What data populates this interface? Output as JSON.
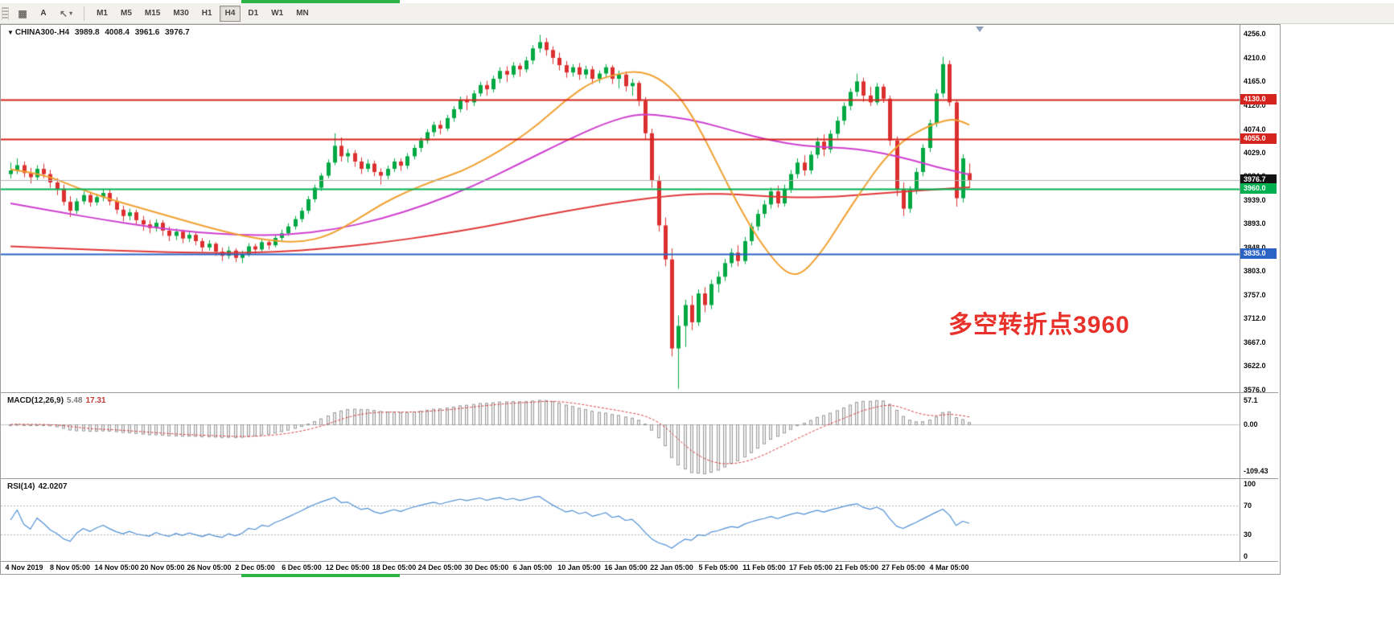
{
  "toolbar": {
    "a_label": "A",
    "icon1_glyph": "▦",
    "icon3_glyph": "↖",
    "chevron_glyph": "▾",
    "timeframes": [
      "M1",
      "M5",
      "M15",
      "M30",
      "H1",
      "H4",
      "D1",
      "W1",
      "MN"
    ],
    "selected_timeframe": "H4"
  },
  "chart_data": {
    "type": "candlestick",
    "symbol": "CHINA300-",
    "timeframe": "H4",
    "header": {
      "symbol_period": "CHINA300-.H4",
      "open": "3989.8",
      "high": "4008.4",
      "low": "3961.6",
      "close": "3976.7"
    },
    "ylim": [
      3576,
      4256
    ],
    "y_ticks": [
      "4256.0",
      "4210.0",
      "4165.0",
      "4120.0",
      "4074.0",
      "4029.0",
      "3984.0",
      "3939.0",
      "3893.0",
      "3848.0",
      "3803.0",
      "3757.0",
      "3712.0",
      "3667.0",
      "3622.0",
      "3576.0"
    ],
    "x_labels": [
      "4 Nov 2019",
      "8 Nov 05:00",
      "14 Nov 05:00",
      "20 Nov 05:00",
      "26 Nov 05:00",
      "2 Dec 05:00",
      "6 Dec 05:00",
      "12 Dec 05:00",
      "18 Dec 05:00",
      "24 Dec 05:00",
      "30 Dec 05:00",
      "6 Jan 05:00",
      "10 Jan 05:00",
      "16 Jan 05:00",
      "22 Jan 05:00",
      "5 Feb 05:00",
      "11 Feb 05:00",
      "17 Feb 05:00",
      "21 Feb 05:00",
      "27 Feb 05:00",
      "4 Mar 05:00"
    ],
    "colors": {
      "bull": "#00a843",
      "bear": "#dc3030",
      "background": "#ffffff",
      "axis_text": "#0c0c0c",
      "border": "#9b9b9b"
    },
    "candles": [
      [
        3988,
        4010,
        3980,
        3995
      ],
      [
        3995,
        4018,
        3988,
        4005
      ],
      [
        4005,
        4012,
        3982,
        3990
      ],
      [
        3990,
        4000,
        3970,
        3982
      ],
      [
        3982,
        4005,
        3975,
        3998
      ],
      [
        3998,
        4008,
        3980,
        3988
      ],
      [
        3988,
        3996,
        3962,
        3972
      ],
      [
        3972,
        3980,
        3948,
        3960
      ],
      [
        3960,
        3968,
        3928,
        3935
      ],
      [
        3935,
        3946,
        3906,
        3918
      ],
      [
        3918,
        3942,
        3912,
        3936
      ],
      [
        3936,
        3955,
        3930,
        3948
      ],
      [
        3948,
        3954,
        3926,
        3934
      ],
      [
        3934,
        3950,
        3928,
        3944
      ],
      [
        3944,
        3960,
        3936,
        3952
      ],
      [
        3952,
        3958,
        3928,
        3936
      ],
      [
        3936,
        3944,
        3912,
        3920
      ],
      [
        3920,
        3928,
        3898,
        3908
      ],
      [
        3908,
        3922,
        3900,
        3915
      ],
      [
        3915,
        3920,
        3892,
        3900
      ],
      [
        3900,
        3908,
        3880,
        3892
      ],
      [
        3892,
        3900,
        3875,
        3885
      ],
      [
        3885,
        3902,
        3878,
        3895
      ],
      [
        3895,
        3900,
        3870,
        3880
      ],
      [
        3880,
        3888,
        3860,
        3870
      ],
      [
        3870,
        3884,
        3862,
        3878
      ],
      [
        3878,
        3882,
        3856,
        3865
      ],
      [
        3865,
        3880,
        3858,
        3872
      ],
      [
        3872,
        3876,
        3852,
        3860
      ],
      [
        3860,
        3866,
        3840,
        3848
      ],
      [
        3848,
        3862,
        3842,
        3855
      ],
      [
        3855,
        3858,
        3832,
        3840
      ],
      [
        3840,
        3848,
        3822,
        3832
      ],
      [
        3832,
        3850,
        3826,
        3842
      ],
      [
        3842,
        3846,
        3820,
        3828
      ],
      [
        3828,
        3842,
        3818,
        3835
      ],
      [
        3835,
        3856,
        3830,
        3850
      ],
      [
        3850,
        3855,
        3836,
        3844
      ],
      [
        3844,
        3864,
        3840,
        3858
      ],
      [
        3858,
        3862,
        3844,
        3852
      ],
      [
        3852,
        3872,
        3848,
        3866
      ],
      [
        3866,
        3882,
        3860,
        3875
      ],
      [
        3875,
        3894,
        3870,
        3888
      ],
      [
        3888,
        3908,
        3882,
        3902
      ],
      [
        3902,
        3924,
        3896,
        3918
      ],
      [
        3918,
        3946,
        3912,
        3940
      ],
      [
        3940,
        3968,
        3934,
        3962
      ],
      [
        3962,
        3990,
        3956,
        3985
      ],
      [
        3985,
        4016,
        3980,
        4010
      ],
      [
        4010,
        4066,
        4005,
        4042
      ],
      [
        4042,
        4058,
        4012,
        4022
      ],
      [
        4022,
        4036,
        4010,
        4028
      ],
      [
        4028,
        4034,
        4002,
        4012
      ],
      [
        4012,
        4020,
        3988,
        3998
      ],
      [
        3998,
        4016,
        3992,
        4008
      ],
      [
        4008,
        4014,
        3984,
        3992
      ],
      [
        3992,
        3999,
        3968,
        3985
      ],
      [
        3985,
        4004,
        3978,
        3998
      ],
      [
        3998,
        4018,
        3992,
        4012
      ],
      [
        4012,
        4018,
        3994,
        4004
      ],
      [
        4004,
        4028,
        3998,
        4022
      ],
      [
        4022,
        4044,
        4016,
        4038
      ],
      [
        4038,
        4058,
        4030,
        4052
      ],
      [
        4052,
        4074,
        4046,
        4068
      ],
      [
        4068,
        4088,
        4060,
        4082
      ],
      [
        4082,
        4090,
        4064,
        4075
      ],
      [
        4075,
        4101,
        4070,
        4095
      ],
      [
        4095,
        4118,
        4088,
        4112
      ],
      [
        4112,
        4136,
        4106,
        4130
      ],
      [
        4130,
        4138,
        4110,
        4125
      ],
      [
        4125,
        4148,
        4118,
        4142
      ],
      [
        4142,
        4164,
        4136,
        4158
      ],
      [
        4158,
        4166,
        4138,
        4150
      ],
      [
        4150,
        4176,
        4144,
        4170
      ],
      [
        4170,
        4192,
        4162,
        4185
      ],
      [
        4185,
        4194,
        4164,
        4178
      ],
      [
        4178,
        4202,
        4172,
        4195
      ],
      [
        4195,
        4200,
        4174,
        4188
      ],
      [
        4188,
        4212,
        4182,
        4205
      ],
      [
        4205,
        4234,
        4198,
        4228
      ],
      [
        4228,
        4254,
        4220,
        4240
      ],
      [
        4240,
        4248,
        4214,
        4225
      ],
      [
        4225,
        4232,
        4198,
        4210
      ],
      [
        4210,
        4220,
        4186,
        4196
      ],
      [
        4196,
        4204,
        4172,
        4182
      ],
      [
        4182,
        4198,
        4174,
        4192
      ],
      [
        4192,
        4200,
        4168,
        4178
      ],
      [
        4178,
        4195,
        4170,
        4188
      ],
      [
        4188,
        4194,
        4160,
        4170
      ],
      [
        4170,
        4186,
        4162,
        4180
      ],
      [
        4180,
        4198,
        4172,
        4192
      ],
      [
        4192,
        4196,
        4160,
        4170
      ],
      [
        4170,
        4186,
        4152,
        4178
      ],
      [
        4178,
        4184,
        4146,
        4156
      ],
      [
        4156,
        4170,
        4138,
        4162
      ],
      [
        4162,
        4166,
        4118,
        4128
      ],
      [
        4128,
        4135,
        4055,
        4066
      ],
      [
        4066,
        4075,
        3962,
        3975
      ],
      [
        3975,
        3985,
        3878,
        3890
      ],
      [
        3890,
        3905,
        3812,
        3825
      ],
      [
        3825,
        3846,
        3640,
        3655
      ],
      [
        3655,
        3718,
        3578,
        3698
      ],
      [
        3698,
        3748,
        3658,
        3738
      ],
      [
        3738,
        3756,
        3690,
        3705
      ],
      [
        3705,
        3768,
        3698,
        3760
      ],
      [
        3760,
        3772,
        3724,
        3738
      ],
      [
        3738,
        3786,
        3730,
        3778
      ],
      [
        3778,
        3802,
        3762,
        3792
      ],
      [
        3792,
        3826,
        3784,
        3818
      ],
      [
        3818,
        3846,
        3810,
        3838
      ],
      [
        3838,
        3852,
        3812,
        3822
      ],
      [
        3822,
        3868,
        3816,
        3860
      ],
      [
        3860,
        3895,
        3852,
        3888
      ],
      [
        3888,
        3920,
        3880,
        3912
      ],
      [
        3912,
        3938,
        3904,
        3930
      ],
      [
        3930,
        3962,
        3922,
        3955
      ],
      [
        3955,
        3966,
        3924,
        3932
      ],
      [
        3932,
        3968,
        3926,
        3960
      ],
      [
        3960,
        3996,
        3952,
        3988
      ],
      [
        3988,
        4018,
        3980,
        4010
      ],
      [
        4010,
        4024,
        3985,
        3995
      ],
      [
        3995,
        4032,
        3988,
        4025
      ],
      [
        4025,
        4058,
        4018,
        4050
      ],
      [
        4050,
        4064,
        4022,
        4035
      ],
      [
        4035,
        4072,
        4028,
        4065
      ],
      [
        4065,
        4098,
        4056,
        4090
      ],
      [
        4090,
        4125,
        4082,
        4118
      ],
      [
        4118,
        4152,
        4110,
        4145
      ],
      [
        4145,
        4180,
        4136,
        4165
      ],
      [
        4165,
        4172,
        4126,
        4138
      ],
      [
        4138,
        4155,
        4118,
        4125
      ],
      [
        4125,
        4162,
        4120,
        4155
      ],
      [
        4155,
        4160,
        4124,
        4132
      ],
      [
        4132,
        4138,
        4042,
        4052
      ],
      [
        4052,
        4060,
        3946,
        3958
      ],
      [
        3958,
        3972,
        3908,
        3922
      ],
      [
        3922,
        3965,
        3914,
        3958
      ],
      [
        3958,
        4000,
        3950,
        3992
      ],
      [
        3992,
        4045,
        3984,
        4038
      ],
      [
        4038,
        4092,
        4030,
        4085
      ],
      [
        4085,
        4150,
        4078,
        4142
      ],
      [
        4142,
        4212,
        4134,
        4198
      ],
      [
        4198,
        4205,
        4118,
        4125
      ],
      [
        4125,
        4130,
        3926,
        3942
      ],
      [
        3942,
        4026,
        3934,
        4018
      ],
      [
        3989.8,
        4008.4,
        3961.6,
        3976.7
      ]
    ],
    "moving_averages": [
      {
        "name": "slow-ma",
        "color": "#e03838",
        "width": 2,
        "points": [
          [
            0,
            3850
          ],
          [
            8,
            3846
          ],
          [
            16,
            3842
          ],
          [
            24,
            3839
          ],
          [
            32,
            3837
          ],
          [
            40,
            3839
          ],
          [
            48,
            3846
          ],
          [
            56,
            3857
          ],
          [
            64,
            3871
          ],
          [
            72,
            3888
          ],
          [
            80,
            3908
          ],
          [
            88,
            3926
          ],
          [
            94,
            3938
          ],
          [
            100,
            3947
          ],
          [
            105,
            3951
          ],
          [
            110,
            3949
          ],
          [
            115,
            3945
          ],
          [
            120,
            3943
          ],
          [
            125,
            3945
          ],
          [
            130,
            3950
          ],
          [
            135,
            3954
          ],
          [
            140,
            3959
          ],
          [
            145,
            3963
          ]
        ]
      },
      {
        "name": "medium-ma",
        "color": "#cf3fcf",
        "width": 2,
        "points": [
          [
            0,
            3932
          ],
          [
            7,
            3916
          ],
          [
            14,
            3901
          ],
          [
            21,
            3887
          ],
          [
            28,
            3877
          ],
          [
            35,
            3871
          ],
          [
            42,
            3872
          ],
          [
            49,
            3882
          ],
          [
            56,
            3902
          ],
          [
            63,
            3930
          ],
          [
            70,
            3965
          ],
          [
            77,
            4008
          ],
          [
            84,
            4052
          ],
          [
            90,
            4086
          ],
          [
            95,
            4104
          ],
          [
            100,
            4098
          ],
          [
            105,
            4086
          ],
          [
            110,
            4068
          ],
          [
            115,
            4052
          ],
          [
            120,
            4042
          ],
          [
            124,
            4039
          ],
          [
            128,
            4036
          ],
          [
            132,
            4028
          ],
          [
            136,
            4016
          ],
          [
            140,
            4002
          ],
          [
            143,
            3993
          ],
          [
            145,
            3987
          ]
        ]
      },
      {
        "name": "fast-ma",
        "color": "#f0a030",
        "width": 2,
        "points": [
          [
            0,
            3997
          ],
          [
            5,
            3988
          ],
          [
            10,
            3962
          ],
          [
            15,
            3940
          ],
          [
            20,
            3922
          ],
          [
            25,
            3904
          ],
          [
            30,
            3886
          ],
          [
            35,
            3870
          ],
          [
            40,
            3860
          ],
          [
            44,
            3858
          ],
          [
            48,
            3870
          ],
          [
            52,
            3898
          ],
          [
            56,
            3930
          ],
          [
            60,
            3955
          ],
          [
            64,
            3975
          ],
          [
            68,
            3992
          ],
          [
            72,
            4018
          ],
          [
            76,
            4048
          ],
          [
            80,
            4085
          ],
          [
            84,
            4130
          ],
          [
            88,
            4165
          ],
          [
            92,
            4180
          ],
          [
            95,
            4185
          ],
          [
            98,
            4172
          ],
          [
            101,
            4140
          ],
          [
            104,
            4080
          ],
          [
            107,
            4005
          ],
          [
            110,
            3930
          ],
          [
            113,
            3865
          ],
          [
            116,
            3815
          ],
          [
            118,
            3795
          ],
          [
            120,
            3800
          ],
          [
            123,
            3845
          ],
          [
            126,
            3905
          ],
          [
            129,
            3962
          ],
          [
            132,
            4015
          ],
          [
            135,
            4052
          ],
          [
            138,
            4075
          ],
          [
            141,
            4090
          ],
          [
            143,
            4093
          ],
          [
            145,
            4082
          ]
        ]
      }
    ],
    "levels": [
      {
        "price": 4130.0,
        "label": "4130.0",
        "color": "#d5231d",
        "tag_bg": "#d5231d",
        "width": 2
      },
      {
        "price": 4055.0,
        "label": "4055.0",
        "color": "#d5231d",
        "tag_bg": "#d5231d",
        "width": 2
      },
      {
        "price": 3976.7,
        "label": "3976.7",
        "color": "#b5b5b5",
        "tag_bg": "#111111",
        "width": 1
      },
      {
        "price": 3960.0,
        "label": "3960.0",
        "color": "#00b050",
        "tag_bg": "#00b050",
        "width": 2
      },
      {
        "price": 3835.0,
        "label": "3835.0",
        "color": "#2b63c4",
        "tag_bg": "#2b63c4",
        "width": 2
      }
    ],
    "annotation": {
      "text": "多空转折点3960",
      "color": "#e8312a"
    },
    "indicators": {
      "macd": {
        "title": "MACD(12,26,9)",
        "main_value": "5.48",
        "signal_value": "17.31",
        "fast": 12,
        "slow": 26,
        "signal": 9,
        "ticks": [
          {
            "label": "57.1",
            "value": 57.1
          },
          {
            "label": "0.00",
            "value": 0
          },
          {
            "label": "-109.43",
            "value": -109.43
          }
        ],
        "hist_fill": "#f0f0f0",
        "hist_border": "#9a9a9a",
        "signal_color": "#d84040",
        "zero_line_color": "#c4c4c4"
      },
      "rsi": {
        "title": "RSI(14)",
        "value": "42.0207",
        "period": 14,
        "levels": [
          70,
          30
        ],
        "ticks": [
          {
            "label": "100",
            "value": 100
          },
          {
            "label": "70",
            "value": 70
          },
          {
            "label": "30",
            "value": 30
          },
          {
            "label": "0",
            "value": 0
          }
        ],
        "line_color": "#4f8fd4",
        "level_line_color": "#b4b4b4"
      }
    }
  }
}
